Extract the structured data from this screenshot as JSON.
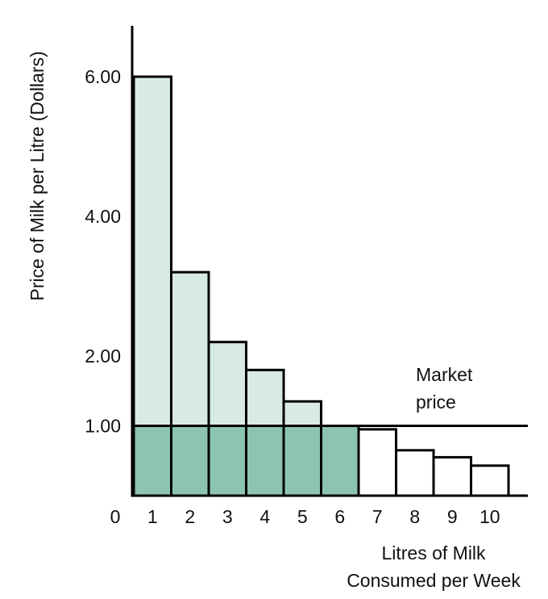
{
  "chart_data": {
    "type": "bar",
    "title": "",
    "xlabel_lines": [
      "Litres of Milk",
      "Consumed per Week"
    ],
    "ylabel": "Price of  Milk per Litre (Dollars)",
    "origin_label": "0",
    "categories": [
      "1",
      "2",
      "3",
      "4",
      "5",
      "6",
      "7",
      "8",
      "9",
      "10"
    ],
    "values": [
      6.0,
      3.2,
      2.2,
      1.8,
      1.35,
      1.0,
      0.95,
      0.65,
      0.55,
      0.43
    ],
    "y_ticks": [
      {
        "value": 6.0,
        "label": "6.00"
      },
      {
        "value": 4.0,
        "label": "4.00"
      },
      {
        "value": 2.0,
        "label": "2.00"
      },
      {
        "value": 1.0,
        "label": "1.00"
      }
    ],
    "ylim": [
      0,
      7
    ],
    "xlim": [
      0,
      10.5
    ],
    "market_price": 1.0,
    "market_price_label_lines": [
      "Market",
      "price"
    ],
    "grid": false,
    "colors": {
      "consumer_surplus_fill": "#d8eae6",
      "expenditure_fill": "#8cc4b1",
      "unpurchased_fill": "#ffffff",
      "outline": "#000000"
    }
  }
}
